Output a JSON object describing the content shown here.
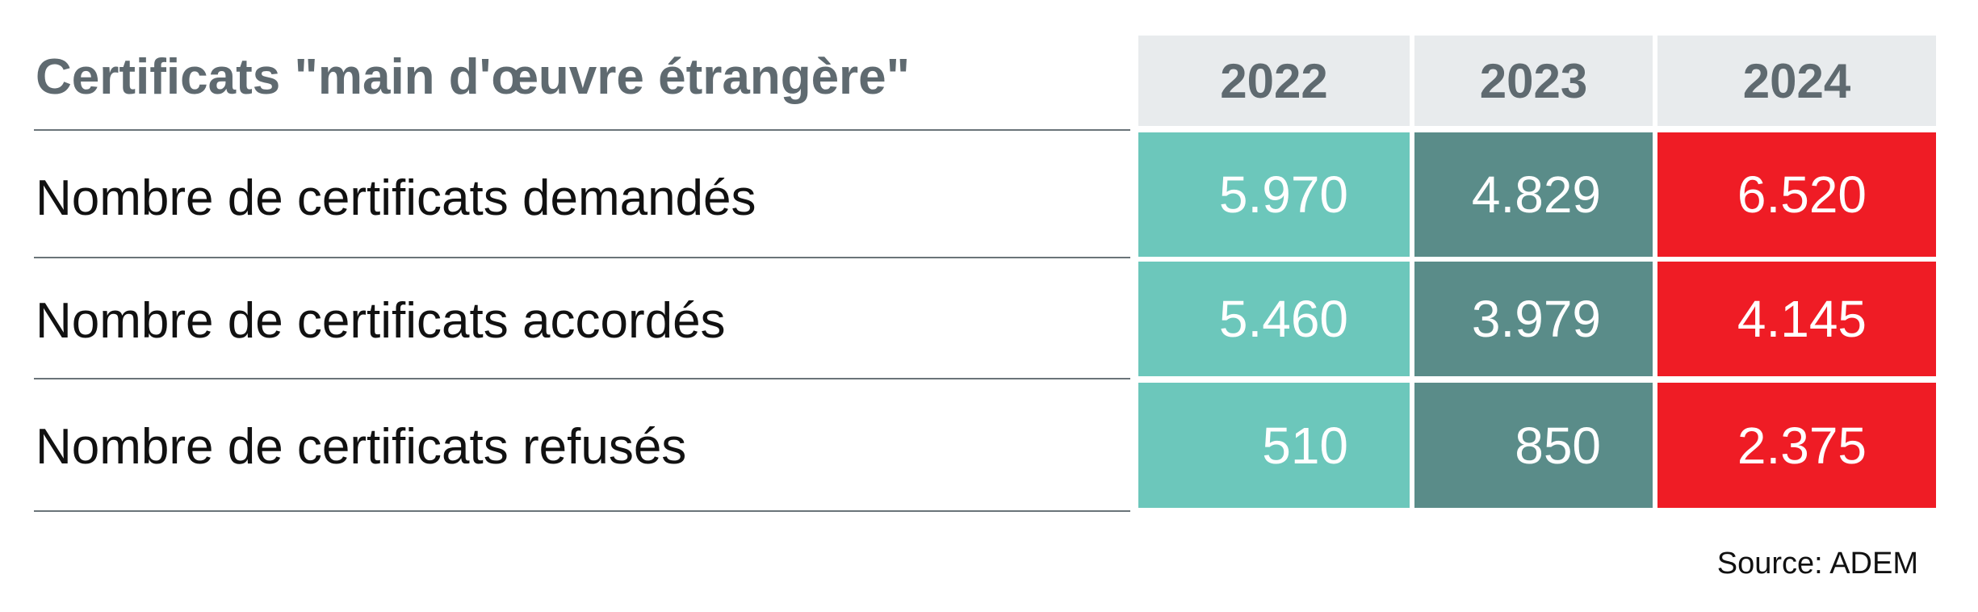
{
  "chart_data": {
    "type": "table",
    "title": "Certificats \"main d'œuvre étrangère\"",
    "columns": [
      "2022",
      "2023",
      "2024"
    ],
    "rows": [
      {
        "label": "Nombre de certificats demandés",
        "values": [
          "5.970",
          "4.829",
          "6.520"
        ]
      },
      {
        "label": "Nombre de certificats accordés",
        "values": [
          "5.460",
          "3.979",
          "4.145"
        ]
      },
      {
        "label": "Nombre de certificats refusés",
        "values": [
          "510",
          "850",
          "2.375"
        ]
      }
    ],
    "column_colors": [
      "#6cc7bb",
      "#5a8c89",
      "#ef1c25"
    ],
    "header_color": "#e8ebed"
  },
  "source": "Source: ADEM"
}
